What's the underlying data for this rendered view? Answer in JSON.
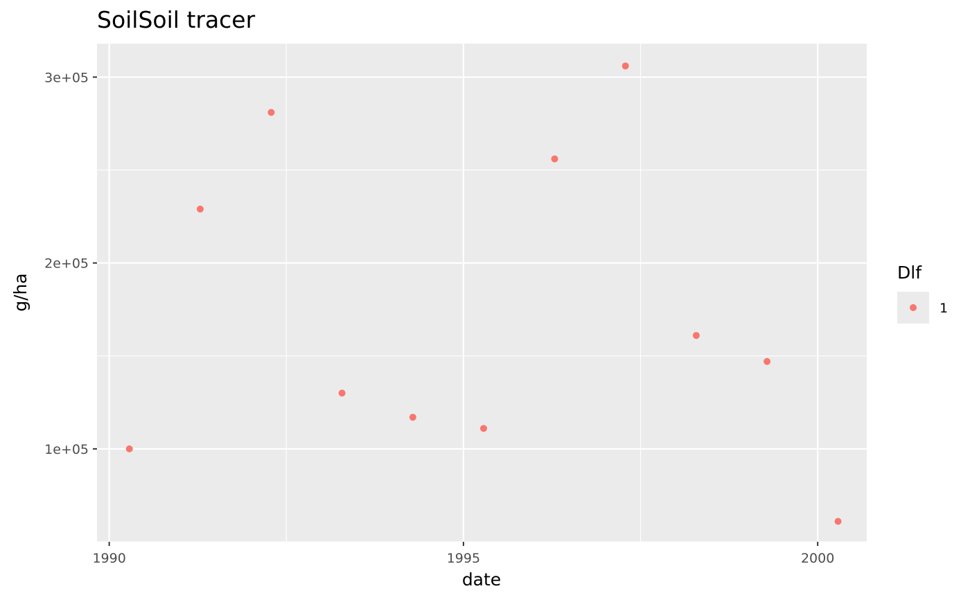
{
  "chart_data": {
    "type": "scatter",
    "title": "SoilSoil tracer",
    "xlabel": "date",
    "ylabel": "g/ha",
    "x_type": "date",
    "x_ticks": [
      {
        "value": "1990-01-01",
        "label": "1990"
      },
      {
        "value": "1995-01-01",
        "label": "1995"
      },
      {
        "value": "2000-01-01",
        "label": "2000"
      }
    ],
    "y_ticks": [
      {
        "value": 100000,
        "label": "1e+05"
      },
      {
        "value": 200000,
        "label": "2e+05"
      },
      {
        "value": 300000,
        "label": "3e+05"
      }
    ],
    "xlim": [
      "1989-10-30",
      "2000-09-10"
    ],
    "ylim": [
      50000,
      318000
    ],
    "grid": true,
    "legend": {
      "title": "Dlf",
      "position": "right",
      "entries": [
        "1"
      ]
    },
    "series": [
      {
        "name": "1",
        "color": "#F8766D",
        "points": [
          {
            "x": "1990-04-15",
            "y": 100000
          },
          {
            "x": "1991-04-15",
            "y": 229000
          },
          {
            "x": "1992-04-15",
            "y": 281000
          },
          {
            "x": "1993-04-15",
            "y": 130000
          },
          {
            "x": "1994-04-15",
            "y": 117000
          },
          {
            "x": "1995-04-15",
            "y": 111000
          },
          {
            "x": "1996-04-15",
            "y": 256000
          },
          {
            "x": "1997-04-15",
            "y": 306000
          },
          {
            "x": "1998-04-15",
            "y": 161000
          },
          {
            "x": "1999-04-15",
            "y": 147000
          },
          {
            "x": "2000-04-15",
            "y": 61000
          }
        ]
      }
    ],
    "panel_color": "#EBEBEB",
    "grid_color": "#FFFFFF"
  }
}
